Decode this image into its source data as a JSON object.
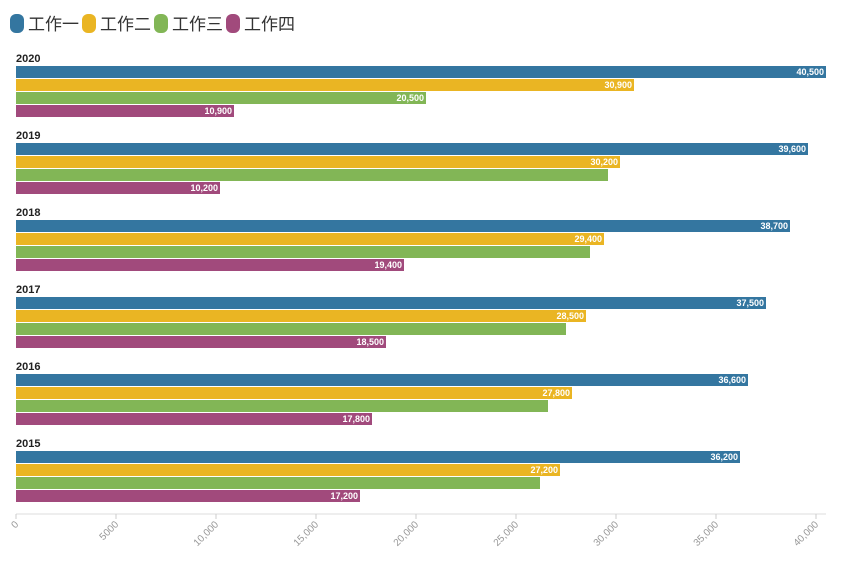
{
  "chart_data": {
    "type": "bar",
    "orientation": "horizontal",
    "categories": [
      "2020",
      "2019",
      "2018",
      "2017",
      "2016",
      "2015"
    ],
    "series": [
      {
        "name": "工作一",
        "color": "#3476a0",
        "values": [
          40500,
          39600,
          38700,
          37500,
          36600,
          36200
        ],
        "labels": [
          "40,500",
          "39,600",
          "38,700",
          "37,500",
          "36,600",
          "36,200"
        ]
      },
      {
        "name": "工作二",
        "color": "#eab523",
        "values": [
          30900,
          30200,
          29400,
          28500,
          27800,
          27200
        ],
        "labels": [
          "30,900",
          "30,200",
          "29,400",
          "28,500",
          "27,800",
          "27,200"
        ]
      },
      {
        "name": "工作三",
        "color": "#82b656",
        "values": [
          20500,
          29600,
          28700,
          27500,
          26600,
          26200
        ],
        "labels": [
          "20,500",
          "",
          "",
          "",
          "",
          ""
        ]
      },
      {
        "name": "工作四",
        "color": "#a14a7c",
        "values": [
          10900,
          10200,
          19400,
          18500,
          17800,
          17200
        ],
        "labels": [
          "10,900",
          "10,200",
          "19,400",
          "18,500",
          "17,800",
          "17,200"
        ]
      }
    ],
    "xlim": [
      0,
      40500
    ],
    "x_ticks": [
      0,
      5000,
      10000,
      15000,
      20000,
      25000,
      30000,
      35000,
      40000
    ],
    "x_tick_labels": [
      "0",
      "5000",
      "10,000",
      "15,000",
      "20,000",
      "25,000",
      "30,000",
      "35,000",
      "40,000"
    ],
    "legend_position": "top-left",
    "grid": false
  }
}
